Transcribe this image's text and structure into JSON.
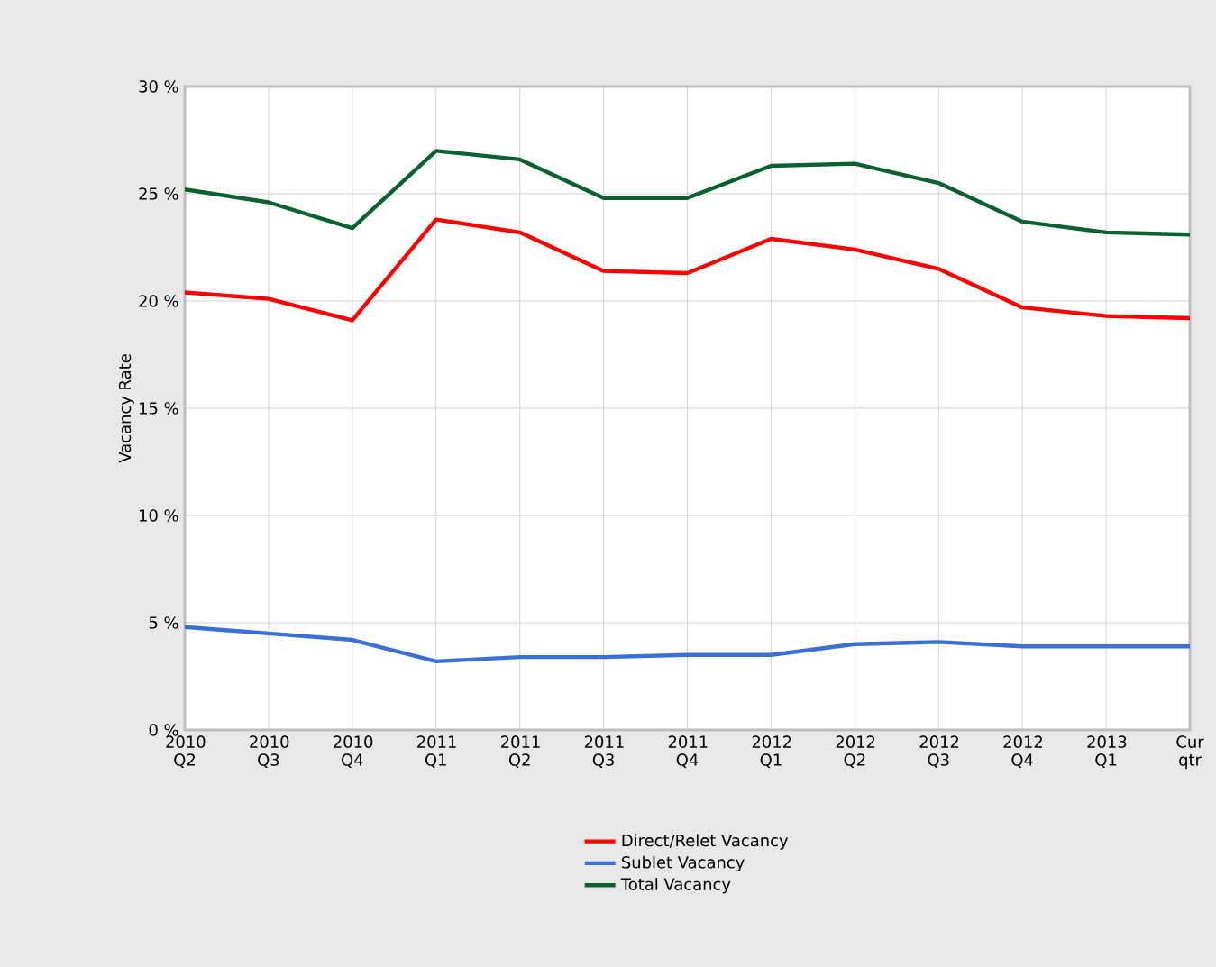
{
  "chart_data": {
    "type": "line",
    "ylabel": "Vacancy Rate",
    "categories": [
      "2010 Q2",
      "2010 Q3",
      "2010 Q4",
      "2011 Q1",
      "2011 Q2",
      "2011 Q3",
      "2011 Q4",
      "2012 Q1",
      "2012 Q2",
      "2012 Q3",
      "2012 Q4",
      "2013 Q1",
      "Cur qtr"
    ],
    "series": [
      {
        "name": "Direct/Relet Vacancy",
        "color": "#ff0000",
        "values": [
          20.4,
          20.1,
          19.1,
          23.8,
          23.2,
          21.4,
          21.3,
          22.9,
          22.4,
          21.5,
          19.7,
          19.3,
          19.2
        ]
      },
      {
        "name": "Sublet Vacancy",
        "color": "#3a6fd8",
        "values": [
          4.8,
          4.5,
          4.2,
          3.2,
          3.4,
          3.4,
          3.5,
          3.5,
          4.0,
          4.1,
          3.9,
          3.9,
          3.9
        ]
      },
      {
        "name": "Total Vacancy",
        "color": "#0a6130",
        "values": [
          25.2,
          24.6,
          23.4,
          27.0,
          26.6,
          24.8,
          24.8,
          26.3,
          26.4,
          25.5,
          23.7,
          23.2,
          23.1
        ]
      }
    ],
    "ylim": [
      0,
      30
    ],
    "yticks": [
      {
        "value": 0,
        "label": "0 %"
      },
      {
        "value": 5,
        "label": "5 %"
      },
      {
        "value": 10,
        "label": "10 %"
      },
      {
        "value": 15,
        "label": "15 %"
      },
      {
        "value": 20,
        "label": "20 %"
      },
      {
        "value": 25,
        "label": "25 %"
      },
      {
        "value": 30,
        "label": "30 %"
      }
    ],
    "grid": true,
    "legend": "bottom",
    "marker": "none",
    "line_style": "solid"
  }
}
